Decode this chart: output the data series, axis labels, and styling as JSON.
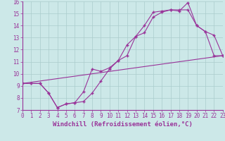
{
  "xlabel": "Windchill (Refroidissement éolien,°C)",
  "xlim": [
    0,
    23
  ],
  "ylim": [
    7,
    16
  ],
  "xticks": [
    0,
    1,
    2,
    3,
    4,
    5,
    6,
    7,
    8,
    9,
    10,
    11,
    12,
    13,
    14,
    15,
    16,
    17,
    18,
    19,
    20,
    21,
    22,
    23
  ],
  "yticks": [
    7,
    8,
    9,
    10,
    11,
    12,
    13,
    14,
    15,
    16
  ],
  "bg_color": "#cce8e8",
  "line_color": "#993399",
  "grid_color": "#aacccc",
  "series1": {
    "x": [
      0,
      1,
      2,
      3,
      4,
      5,
      6,
      7,
      8,
      9,
      10,
      11,
      12,
      13,
      14,
      15,
      16,
      17,
      18,
      19,
      20,
      21,
      22,
      23
    ],
    "y": [
      9.2,
      9.2,
      9.2,
      8.4,
      7.2,
      7.5,
      7.6,
      7.7,
      8.4,
      9.4,
      10.4,
      11.1,
      12.4,
      13.1,
      14.0,
      15.1,
      15.2,
      15.3,
      15.2,
      15.9,
      14.0,
      13.5,
      13.2,
      11.5
    ]
  },
  "series2": {
    "x": [
      0,
      1,
      2,
      3,
      4,
      5,
      6,
      7,
      8,
      9,
      10,
      11,
      12,
      13,
      14,
      15,
      16,
      17,
      18,
      19,
      20,
      21,
      22,
      23
    ],
    "y": [
      9.2,
      9.2,
      9.2,
      8.4,
      7.2,
      7.5,
      7.6,
      8.5,
      10.4,
      10.2,
      10.5,
      11.1,
      11.5,
      13.1,
      13.4,
      14.7,
      15.1,
      15.3,
      15.3,
      15.3,
      14.0,
      13.5,
      11.5,
      11.5
    ]
  },
  "series3": {
    "x": [
      0,
      23
    ],
    "y": [
      9.2,
      11.5
    ]
  },
  "label_fontsize": 6.5,
  "tick_fontsize": 5.5
}
